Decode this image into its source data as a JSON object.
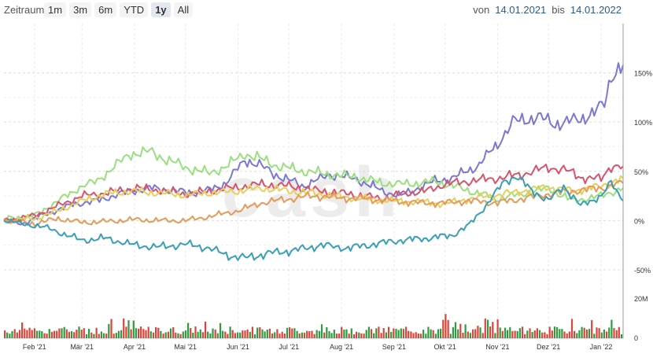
{
  "toolbar": {
    "range_label": "Zeitraum",
    "range_buttons": [
      "1m",
      "3m",
      "6m",
      "YTD",
      "1y",
      "All"
    ],
    "active_range": "1y",
    "from_label": "von",
    "from_date": "14.01.2021",
    "to_label": "bis",
    "to_date": "14.01.2022"
  },
  "chart_data": {
    "type": "line",
    "watermark": "cash",
    "x_tick_labels": [
      "Feb '21",
      "Mär '21",
      "Apr '21",
      "Mai '21",
      "Jun '21",
      "Jul '21",
      "Aug '21",
      "Sep '21",
      "Okt '21",
      "Nov '21",
      "Dez '21",
      "Jan '22"
    ],
    "y_tick_labels": [
      "150%",
      "100%",
      "50%",
      "0%",
      "-50%"
    ],
    "y_ticks": [
      150,
      100,
      50,
      0,
      -50
    ],
    "ylim": [
      -70,
      200
    ],
    "x_range": [
      "2021-01-14",
      "2022-01-14"
    ],
    "series": [
      {
        "color": "#7b78d4",
        "points": [
          [
            "2021-01-14",
            0
          ],
          [
            "2021-01-25",
            -3
          ],
          [
            "2021-02-10",
            8
          ],
          [
            "2021-02-25",
            17
          ],
          [
            "2021-03-10",
            20
          ],
          [
            "2021-03-25",
            28
          ],
          [
            "2021-04-10",
            33
          ],
          [
            "2021-04-25",
            30
          ],
          [
            "2021-05-10",
            28
          ],
          [
            "2021-05-25",
            38
          ],
          [
            "2021-06-05",
            62
          ],
          [
            "2021-06-15",
            55
          ],
          [
            "2021-06-25",
            45
          ],
          [
            "2021-07-10",
            35
          ],
          [
            "2021-07-25",
            47
          ],
          [
            "2021-08-10",
            42
          ],
          [
            "2021-08-25",
            30
          ],
          [
            "2021-09-05",
            25
          ],
          [
            "2021-09-15",
            33
          ],
          [
            "2021-09-25",
            40
          ],
          [
            "2021-10-05",
            43
          ],
          [
            "2021-10-20",
            55
          ],
          [
            "2021-11-01",
            78
          ],
          [
            "2021-11-10",
            100
          ],
          [
            "2021-11-25",
            105
          ],
          [
            "2021-12-05",
            98
          ],
          [
            "2021-12-20",
            103
          ],
          [
            "2021-12-28",
            110
          ],
          [
            "2022-01-03",
            118
          ],
          [
            "2022-01-07",
            148
          ],
          [
            "2022-01-14",
            158
          ]
        ]
      },
      {
        "color": "#9adf7e",
        "points": [
          [
            "2021-01-14",
            2
          ],
          [
            "2021-02-01",
            5
          ],
          [
            "2021-02-15",
            20
          ],
          [
            "2021-03-01",
            35
          ],
          [
            "2021-03-10",
            40
          ],
          [
            "2021-03-20",
            55
          ],
          [
            "2021-03-30",
            68
          ],
          [
            "2021-04-10",
            70
          ],
          [
            "2021-04-20",
            62
          ],
          [
            "2021-05-01",
            54
          ],
          [
            "2021-05-15",
            48
          ],
          [
            "2021-05-25",
            55
          ],
          [
            "2021-06-05",
            68
          ],
          [
            "2021-06-15",
            62
          ],
          [
            "2021-06-25",
            55
          ],
          [
            "2021-07-10",
            50
          ],
          [
            "2021-07-25",
            47
          ],
          [
            "2021-08-10",
            44
          ],
          [
            "2021-08-25",
            38
          ],
          [
            "2021-09-10",
            37
          ],
          [
            "2021-09-25",
            40
          ],
          [
            "2021-10-10",
            33
          ],
          [
            "2021-10-20",
            28
          ],
          [
            "2021-11-01",
            22
          ],
          [
            "2021-11-15",
            27
          ],
          [
            "2021-12-01",
            33
          ],
          [
            "2021-12-15",
            20
          ],
          [
            "2022-01-01",
            25
          ],
          [
            "2022-01-14",
            33
          ]
        ]
      },
      {
        "color": "#d8536d",
        "points": [
          [
            "2021-01-14",
            0
          ],
          [
            "2021-02-01",
            5
          ],
          [
            "2021-02-15",
            15
          ],
          [
            "2021-03-01",
            25
          ],
          [
            "2021-03-15",
            28
          ],
          [
            "2021-04-01",
            33
          ],
          [
            "2021-04-15",
            31
          ],
          [
            "2021-05-01",
            27
          ],
          [
            "2021-05-15",
            30
          ],
          [
            "2021-06-01",
            34
          ],
          [
            "2021-06-15",
            37
          ],
          [
            "2021-07-01",
            35
          ],
          [
            "2021-07-15",
            31
          ],
          [
            "2021-08-01",
            28
          ],
          [
            "2021-08-15",
            25
          ],
          [
            "2021-08-25",
            22
          ],
          [
            "2021-09-05",
            27
          ],
          [
            "2021-09-20",
            30
          ],
          [
            "2021-10-01",
            37
          ],
          [
            "2021-10-15",
            40
          ],
          [
            "2021-11-01",
            43
          ],
          [
            "2021-11-15",
            47
          ],
          [
            "2021-12-01",
            54
          ],
          [
            "2021-12-10",
            52
          ],
          [
            "2021-12-20",
            44
          ],
          [
            "2022-01-01",
            42
          ],
          [
            "2022-01-07",
            56
          ],
          [
            "2022-01-14",
            55
          ]
        ]
      },
      {
        "color": "#e6cf5c",
        "points": [
          [
            "2021-01-14",
            0
          ],
          [
            "2021-02-01",
            2
          ],
          [
            "2021-02-15",
            10
          ],
          [
            "2021-03-01",
            20
          ],
          [
            "2021-03-15",
            27
          ],
          [
            "2021-04-01",
            30
          ],
          [
            "2021-04-15",
            28
          ],
          [
            "2021-05-01",
            26
          ],
          [
            "2021-05-15",
            28
          ],
          [
            "2021-06-01",
            30
          ],
          [
            "2021-06-15",
            33
          ],
          [
            "2021-07-01",
            30
          ],
          [
            "2021-07-15",
            28
          ],
          [
            "2021-08-01",
            24
          ],
          [
            "2021-08-15",
            22
          ],
          [
            "2021-09-01",
            20
          ],
          [
            "2021-09-15",
            19
          ],
          [
            "2021-10-01",
            17
          ],
          [
            "2021-10-15",
            22
          ],
          [
            "2021-11-01",
            26
          ],
          [
            "2021-11-15",
            30
          ],
          [
            "2021-12-01",
            34
          ],
          [
            "2021-12-15",
            30
          ],
          [
            "2022-01-01",
            35
          ],
          [
            "2022-01-14",
            43
          ]
        ]
      },
      {
        "color": "#e69a5a",
        "points": [
          [
            "2021-01-14",
            0
          ],
          [
            "2021-02-01",
            -3
          ],
          [
            "2021-02-15",
            2
          ],
          [
            "2021-03-01",
            -2
          ],
          [
            "2021-03-15",
            -1
          ],
          [
            "2021-04-01",
            1
          ],
          [
            "2021-04-15",
            0
          ],
          [
            "2021-05-01",
            0
          ],
          [
            "2021-05-15",
            4
          ],
          [
            "2021-06-01",
            10
          ],
          [
            "2021-06-15",
            18
          ],
          [
            "2021-07-01",
            22
          ],
          [
            "2021-07-15",
            25
          ],
          [
            "2021-08-01",
            23
          ],
          [
            "2021-08-15",
            22
          ],
          [
            "2021-09-01",
            20
          ],
          [
            "2021-09-15",
            18
          ],
          [
            "2021-10-01",
            18
          ],
          [
            "2021-10-15",
            20
          ],
          [
            "2021-11-01",
            18
          ],
          [
            "2021-11-15",
            22
          ],
          [
            "2021-12-01",
            27
          ],
          [
            "2021-12-15",
            30
          ],
          [
            "2022-01-01",
            33
          ],
          [
            "2022-01-14",
            38
          ]
        ]
      },
      {
        "color": "#3a9fb5",
        "points": [
          [
            "2021-01-14",
            0
          ],
          [
            "2021-01-25",
            -3
          ],
          [
            "2021-02-10",
            -8
          ],
          [
            "2021-02-20",
            -15
          ],
          [
            "2021-03-01",
            -20
          ],
          [
            "2021-03-15",
            -18
          ],
          [
            "2021-04-01",
            -25
          ],
          [
            "2021-04-15",
            -27
          ],
          [
            "2021-05-01",
            -24
          ],
          [
            "2021-05-15",
            -28
          ],
          [
            "2021-05-25",
            -35
          ],
          [
            "2021-06-05",
            -38
          ],
          [
            "2021-06-20",
            -33
          ],
          [
            "2021-07-05",
            -30
          ],
          [
            "2021-07-20",
            -25
          ],
          [
            "2021-08-05",
            -28
          ],
          [
            "2021-08-20",
            -24
          ],
          [
            "2021-09-05",
            -20
          ],
          [
            "2021-09-20",
            -18
          ],
          [
            "2021-10-05",
            -15
          ],
          [
            "2021-10-15",
            -5
          ],
          [
            "2021-10-25",
            15
          ],
          [
            "2021-11-05",
            40
          ],
          [
            "2021-11-12",
            45
          ],
          [
            "2021-11-20",
            32
          ],
          [
            "2021-12-01",
            20
          ],
          [
            "2021-12-10",
            35
          ],
          [
            "2021-12-20",
            15
          ],
          [
            "2022-01-01",
            25
          ],
          [
            "2022-01-07",
            38
          ],
          [
            "2022-01-14",
            20
          ]
        ]
      }
    ],
    "volume": {
      "ylabel_top": "20M",
      "ylabel_bottom": "0",
      "ylim": [
        0,
        20
      ],
      "up_color": "#2f9a3f",
      "down_color": "#d8453a"
    }
  }
}
